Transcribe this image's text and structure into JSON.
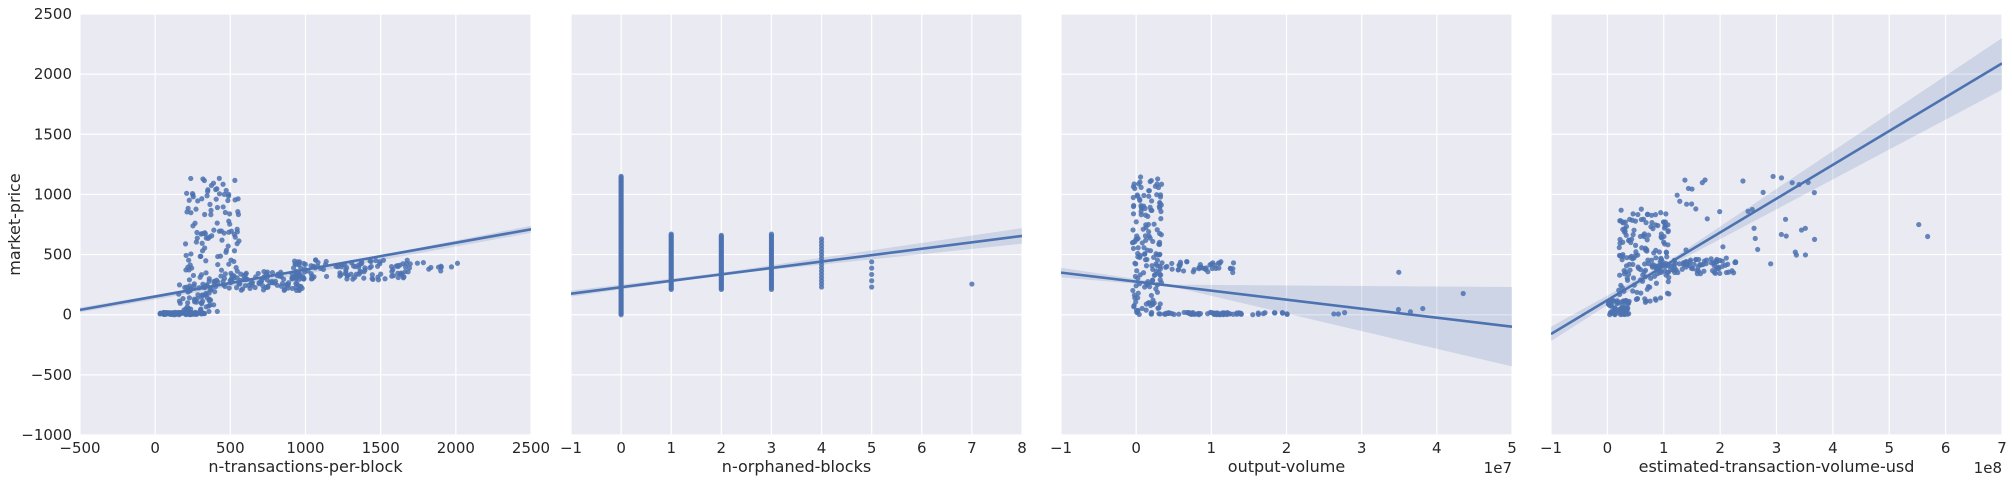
{
  "chart_data": {
    "type": "scatter",
    "shared_ylabel": "market-price",
    "ylim": [
      -1000,
      2500
    ],
    "yticks": [
      "−1000",
      "−500",
      "0",
      "500",
      "1000",
      "1500",
      "2000",
      "2500"
    ],
    "grid": true,
    "colors": {
      "background": "#eaeaf2",
      "grid": "#ffffff",
      "points": "#4c72b0",
      "line": "#4c72b0",
      "band": "#4c72b0"
    },
    "panels": [
      {
        "xlabel": "n-transactions-per-block",
        "xlim": [
          -500,
          2500
        ],
        "xticks": [
          "−500",
          "0",
          "500",
          "1000",
          "1500",
          "2000",
          "2500"
        ],
        "offset_text": "",
        "regression": {
          "x0": -500,
          "y0": 40,
          "x1": 2500,
          "y1": 710
        },
        "ci_band": [
          [
            -500,
            20,
            60
          ],
          [
            1000,
            340,
            370
          ],
          [
            2500,
            680,
            740
          ]
        ],
        "clusters": [
          {
            "x": [
              30,
              330
            ],
            "y": [
              0,
              20
            ],
            "n": 90
          },
          {
            "x": [
              150,
              420
            ],
            "y": [
              20,
              250
            ],
            "n": 60
          },
          {
            "x": [
              200,
              560
            ],
            "y": [
              250,
              1150
            ],
            "n": 120
          },
          {
            "x": [
              450,
              1000
            ],
            "y": [
              200,
              360
            ],
            "n": 100
          },
          {
            "x": [
              900,
              1700
            ],
            "y": [
              290,
              460
            ],
            "n": 110
          },
          {
            "x": [
              1600,
              2050
            ],
            "y": [
              360,
              440
            ],
            "n": 14
          }
        ]
      },
      {
        "xlabel": "n-orphaned-blocks",
        "xlim": [
          -1,
          8
        ],
        "xticks": [
          "−1",
          "0",
          "1",
          "2",
          "3",
          "4",
          "5",
          "6",
          "7",
          "8"
        ],
        "offset_text": "",
        "regression": {
          "x0": -1,
          "y0": 175,
          "x1": 8,
          "y1": 655
        },
        "ci_band": [
          [
            -1,
            150,
            200
          ],
          [
            2,
            330,
            350
          ],
          [
            8,
            590,
            720
          ]
        ],
        "stripes": [
          {
            "x": 0,
            "y": [
              0,
              1150
            ],
            "n": 110
          },
          {
            "x": 1,
            "y": [
              210,
              670
            ],
            "n": 45
          },
          {
            "x": 2,
            "y": [
              210,
              660
            ],
            "n": 45
          },
          {
            "x": 3,
            "y": [
              210,
              670
            ],
            "n": 35
          },
          {
            "x": 4,
            "y": [
              230,
              630
            ],
            "n": 16
          },
          {
            "x": 5,
            "y": [
              230,
              440
            ],
            "n": 5
          },
          {
            "x": 7,
            "y": [
              250,
              260
            ],
            "n": 1
          }
        ]
      },
      {
        "xlabel": "output-volume",
        "xlim": [
          -1,
          5
        ],
        "xticks": [
          "−1",
          "0",
          "1",
          "2",
          "3",
          "4",
          "5"
        ],
        "offset_text": "1e7",
        "regression": {
          "x0": -1,
          "y0": 350,
          "x1": 5,
          "y1": -100
        },
        "ci_band": [
          [
            -1,
            310,
            390
          ],
          [
            0.5,
            230,
            250
          ],
          [
            5,
            -430,
            230
          ]
        ],
        "clusters": [
          {
            "x": [
              -0.05,
              0.35
            ],
            "y": [
              0,
              1150
            ],
            "n": 160
          },
          {
            "x": [
              0.3,
              1.4
            ],
            "y": [
              0,
              20
            ],
            "n": 60
          },
          {
            "x": [
              0.3,
              1.3
            ],
            "y": [
              350,
              450
            ],
            "n": 40
          },
          {
            "x": [
              1.4,
              2.8
            ],
            "y": [
              0,
              20
            ],
            "n": 14
          },
          {
            "x": [
              3.3,
              4.7
            ],
            "y": [
              0,
              420
            ],
            "n": 5
          }
        ]
      },
      {
        "xlabel": "estimated-transaction-volume-usd",
        "xlim": [
          -1,
          7
        ],
        "xticks": [
          "−1",
          "0",
          "1",
          "2",
          "3",
          "4",
          "5",
          "6",
          "7"
        ],
        "offset_text": "1e8",
        "regression": {
          "x0": -1,
          "y0": -160,
          "x1": 7,
          "y1": 2090
        },
        "ci_band": [
          [
            -1,
            -220,
            -100
          ],
          [
            1,
            380,
            420
          ],
          [
            7,
            1870,
            2300
          ]
        ],
        "clusters": [
          {
            "x": [
              0,
              0.4
            ],
            "y": [
              0,
              120
            ],
            "n": 60
          },
          {
            "x": [
              0.2,
              1.1
            ],
            "y": [
              100,
              880
            ],
            "n": 150
          },
          {
            "x": [
              0.8,
              2.3
            ],
            "y": [
              340,
              460
            ],
            "n": 90
          },
          {
            "x": [
              1.2,
              3.8
            ],
            "y": [
              380,
              1150
            ],
            "n": 40
          },
          {
            "x": [
              4.9,
              5.9
            ],
            "y": [
              600,
              770
            ],
            "n": 2
          }
        ]
      }
    ]
  }
}
